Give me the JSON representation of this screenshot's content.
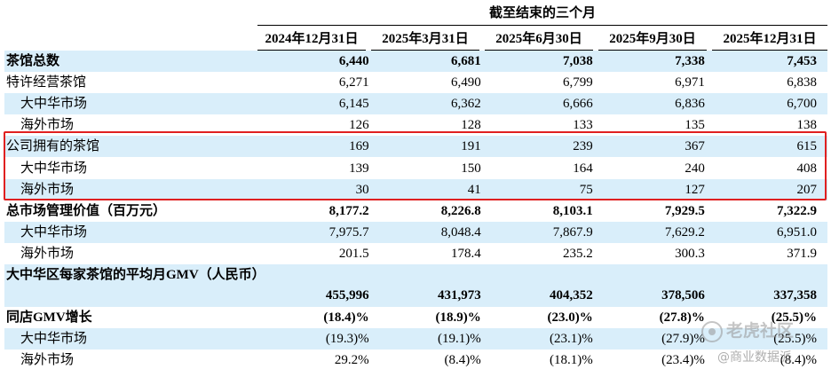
{
  "header": {
    "period_label": "截至结束的三个月",
    "columns": [
      "2024年12月31日",
      "2025年3月31日",
      "2025年6月30日",
      "2025年9月30日",
      "2025年12月31日"
    ]
  },
  "rows": [
    {
      "label": "茶馆总数",
      "values": [
        "6,440",
        "6,681",
        "7,038",
        "7,338",
        "7,453"
      ],
      "bold": true,
      "shade": true,
      "indent": false
    },
    {
      "label": "特许经营茶馆",
      "values": [
        "6,271",
        "6,490",
        "6,799",
        "6,971",
        "6,838"
      ],
      "bold": false,
      "shade": false,
      "indent": false
    },
    {
      "label": "大中华市场",
      "values": [
        "6,145",
        "6,362",
        "6,666",
        "6,836",
        "6,700"
      ],
      "bold": false,
      "shade": true,
      "indent": true
    },
    {
      "label": "海外市场",
      "values": [
        "126",
        "128",
        "133",
        "135",
        "138"
      ],
      "bold": false,
      "shade": false,
      "indent": true
    },
    {
      "label": "公司拥有的茶馆",
      "values": [
        "169",
        "191",
        "239",
        "367",
        "615"
      ],
      "bold": false,
      "shade": true,
      "indent": false
    },
    {
      "label": "大中华市场",
      "values": [
        "139",
        "150",
        "164",
        "240",
        "408"
      ],
      "bold": false,
      "shade": false,
      "indent": true
    },
    {
      "label": "海外市场",
      "values": [
        "30",
        "41",
        "75",
        "127",
        "207"
      ],
      "bold": false,
      "shade": true,
      "indent": true
    },
    {
      "label": "总市场管理价值（百万元）",
      "values": [
        "8,177.2",
        "8,226.8",
        "8,103.1",
        "7,929.5",
        "7,322.9"
      ],
      "bold": true,
      "shade": false,
      "indent": false
    },
    {
      "label": "大中华市场",
      "values": [
        "7,975.7",
        "8,048.4",
        "7,867.9",
        "7,629.2",
        "6,951.0"
      ],
      "bold": false,
      "shade": true,
      "indent": true
    },
    {
      "label": "海外市场",
      "values": [
        "201.5",
        "178.4",
        "235.2",
        "300.3",
        "371.9"
      ],
      "bold": false,
      "shade": false,
      "indent": true
    },
    {
      "label": "大中华区每家茶馆的平均月GMV（人民币）",
      "values": [
        "455,996",
        "431,973",
        "404,352",
        "378,506",
        "337,358"
      ],
      "bold": true,
      "shade": true,
      "indent": false,
      "tall": true
    },
    {
      "label": "同店GMV增长",
      "values": [
        "(18.4)%",
        "(18.9)%",
        "(23.0)%",
        "(27.8)%",
        "(25.5)%"
      ],
      "bold": true,
      "shade": false,
      "indent": false
    },
    {
      "label": "大中华市场",
      "values": [
        "(19.3)%",
        "(19.1)%",
        "(23.1)%",
        "(27.9)%",
        "(25.5)%"
      ],
      "bold": false,
      "shade": true,
      "indent": true
    },
    {
      "label": "海外市场",
      "values": [
        "29.2%",
        "(8.4)%",
        "(18.1)%",
        "(23.4)%",
        "(8.4)%"
      ],
      "bold": false,
      "shade": false,
      "indent": true
    }
  ],
  "watermark": {
    "brand": "老虎社区",
    "credit": "@商业数据派"
  },
  "colors": {
    "row_shade": "#d9eefa",
    "highlight_border": "#e02020"
  }
}
